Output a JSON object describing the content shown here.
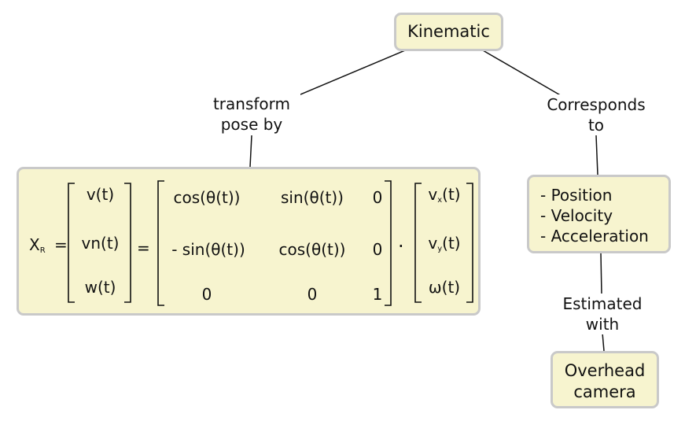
{
  "nodes": {
    "kinematic": "Kinematic",
    "overhead": [
      "Overhead",
      "camera"
    ],
    "attributes": [
      "- Position",
      "- Velocity",
      "- Acceleration"
    ]
  },
  "edge_labels": {
    "transform": [
      "transform",
      "pose by"
    ],
    "corresponds": [
      "Corresponds",
      "to"
    ],
    "estimated": [
      "Estimated",
      "with"
    ]
  },
  "equation": {
    "lhs_symbol": "X",
    "lhs_subscript": "R",
    "equals": "=",
    "velocity_vector": [
      "v(t)",
      "vn(t)",
      "w(t)"
    ],
    "rotation_matrix": [
      [
        "cos(θ(t))",
        "sin(θ(t))",
        "0"
      ],
      [
        "- sin(θ(t))",
        "cos(θ(t))",
        "0"
      ],
      [
        "0",
        "0",
        "1"
      ]
    ],
    "dot": "·",
    "world_vector": [
      {
        "base": "v",
        "sub": "x",
        "rest": "(t)"
      },
      {
        "base": "v",
        "sub": "y",
        "rest": "(t)"
      },
      {
        "base": "ω",
        "sub": "",
        "rest": "(t)"
      }
    ]
  }
}
